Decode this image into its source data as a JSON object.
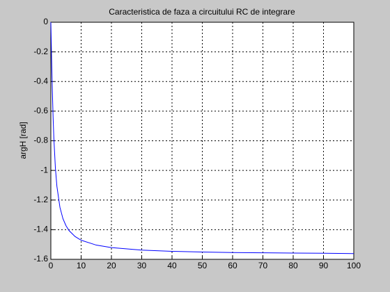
{
  "chart_data": {
    "type": "line",
    "title": "Caracteristica de faza a circuitului RC de integrare",
    "y_label": "argH [rad]",
    "x": [
      0,
      0.25,
      0.5,
      0.75,
      1,
      1.5,
      2,
      3,
      4,
      5,
      6,
      8,
      10,
      15,
      20,
      30,
      40,
      50,
      60,
      70,
      80,
      90,
      100
    ],
    "series": [
      {
        "color": "#0000ff",
        "values": [
          0,
          -0.245,
          -0.464,
          -0.644,
          -0.785,
          -0.983,
          -1.107,
          -1.249,
          -1.326,
          -1.373,
          -1.406,
          -1.446,
          -1.471,
          -1.504,
          -1.521,
          -1.538,
          -1.546,
          -1.551,
          -1.554,
          -1.556,
          -1.558,
          -1.559,
          -1.561
        ]
      }
    ],
    "xlim": [
      0,
      100
    ],
    "xticks": [
      0,
      10,
      20,
      30,
      40,
      50,
      60,
      70,
      80,
      90,
      100
    ],
    "ylim": [
      -1.6,
      0
    ],
    "yticks": [
      0,
      -0.2,
      -0.4,
      -0.6,
      -0.8,
      -1,
      -1.2,
      -1.4,
      -1.6
    ],
    "grid": true
  }
}
